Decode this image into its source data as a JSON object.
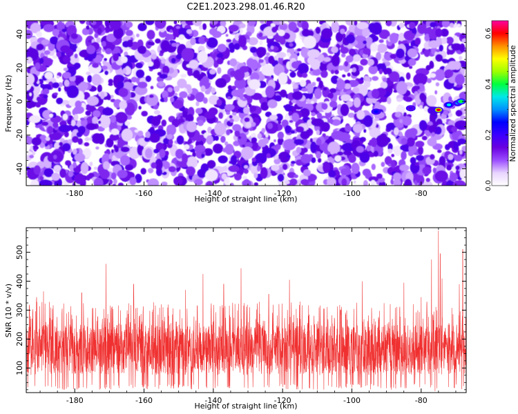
{
  "title": "C2E1.2023.298.01.46.R20",
  "chart_data": [
    {
      "type": "heatmap",
      "xlabel": "Height of straight line (km)",
      "ylabel": "Frequency (Hz)",
      "xlim": [
        -194,
        -67
      ],
      "ylim": [
        -50,
        48
      ],
      "xticks": [
        -180,
        -160,
        -140,
        -120,
        -100,
        -80
      ],
      "yticks": [
        -40,
        -20,
        0,
        20,
        40
      ],
      "colorbar": {
        "label": "Normalized spectral amplitude",
        "range": [
          0,
          0.65
        ],
        "ticks": [
          0.0,
          0.2,
          0.4,
          0.6
        ],
        "colors": [
          "#ffffff",
          "#e8d4ff",
          "#9b4dff",
          "#6a00e0",
          "#3a00ff",
          "#0000ff",
          "#0090ff",
          "#00e8e8",
          "#00ff40",
          "#a0ff00",
          "#ffff00",
          "#ff9000",
          "#ff0000",
          "#ff00a0"
        ]
      },
      "hotspots": [
        {
          "x": -93,
          "y": -6,
          "value": 0.25
        },
        {
          "x": -83,
          "y": -4,
          "value": 0.22
        },
        {
          "x": -75,
          "y": -5,
          "value": 0.62
        },
        {
          "x": -72,
          "y": -2,
          "value": 0.35
        },
        {
          "x": -69.5,
          "y": -1,
          "value": 0.3
        },
        {
          "x": -68.5,
          "y": 0,
          "value": 0.4
        }
      ]
    },
    {
      "type": "line",
      "color": "#f03030",
      "xlabel": "Height of straight line (km)",
      "ylabel": "SNR (10 * v/v)",
      "xlim": [
        -194,
        -67
      ],
      "ylim": [
        15,
        585
      ],
      "xticks": [
        -180,
        -160,
        -140,
        -120,
        -100,
        -80
      ],
      "yticks": [
        100,
        200,
        300,
        400,
        500
      ],
      "baseline_range": [
        45,
        250
      ],
      "peaks": [
        {
          "x": -191,
          "y": 345
        },
        {
          "x": -189,
          "y": 365
        },
        {
          "x": -178,
          "y": 360
        },
        {
          "x": -171,
          "y": 460
        },
        {
          "x": -163,
          "y": 390
        },
        {
          "x": -155,
          "y": 320
        },
        {
          "x": -148,
          "y": 370
        },
        {
          "x": -143,
          "y": 425
        },
        {
          "x": -137,
          "y": 390
        },
        {
          "x": -132,
          "y": 445
        },
        {
          "x": -124,
          "y": 355
        },
        {
          "x": -118,
          "y": 405
        },
        {
          "x": -110,
          "y": 410
        },
        {
          "x": -100,
          "y": 360
        },
        {
          "x": -97,
          "y": 400
        },
        {
          "x": -85,
          "y": 395
        },
        {
          "x": -80,
          "y": 345
        },
        {
          "x": -77,
          "y": 475
        },
        {
          "x": -75,
          "y": 575
        },
        {
          "x": -74.5,
          "y": 495
        },
        {
          "x": -74,
          "y": 410
        },
        {
          "x": -69,
          "y": 390
        },
        {
          "x": -68,
          "y": 510
        }
      ],
      "dips": [
        {
          "x": -76,
          "y": 20
        },
        {
          "x": -75.5,
          "y": 30
        },
        {
          "x": -110,
          "y": 25
        },
        {
          "x": -130,
          "y": 30
        },
        {
          "x": -150,
          "y": 35
        },
        {
          "x": -90,
          "y": 30
        },
        {
          "x": -100,
          "y": 32
        },
        {
          "x": -170,
          "y": 30
        },
        {
          "x": -140,
          "y": 28
        }
      ]
    }
  ]
}
